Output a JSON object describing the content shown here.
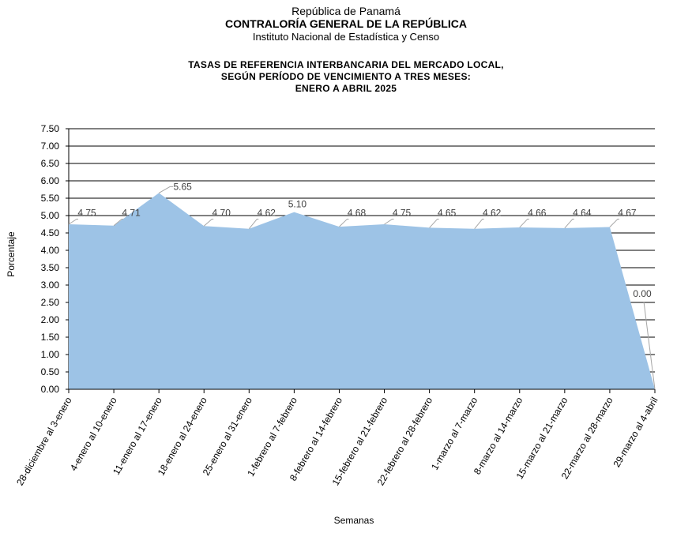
{
  "header": {
    "line1": "República de Panamá",
    "line2": "CONTRALORÍA GENERAL DE LA REPÚBLICA",
    "line3": "Instituto Nacional de Estadística y Censo"
  },
  "chart_data": {
    "type": "area",
    "title_lines": [
      "TASAS DE REFERENCIA INTERBANCARIA DEL MERCADO LOCAL,",
      "SEGÚN PERÍODO DE VENCIMIENTO A TRES MESES:",
      "ENERO A ABRIL 2025"
    ],
    "xlabel": "Semanas",
    "ylabel": "Porcentaje",
    "ylim": [
      0,
      7.5
    ],
    "yticks": [
      "0.00",
      "0.50",
      "1.00",
      "1.50",
      "2.00",
      "2.50",
      "3.00",
      "3.50",
      "4.00",
      "4.50",
      "5.00",
      "5.50",
      "6.00",
      "6.50",
      "7.00",
      "7.50"
    ],
    "categories": [
      "28-diciembre al 3-enero",
      "4-enero al 10-enero",
      "11-enero al 17-enero",
      "18-enero al 24-enero",
      "25-enero al 31-enero",
      "1-febrero al 7-febrero",
      "8-febrero al 14-febrero",
      "15-febrero al 21-febrero",
      "22-febrero al 28-febrero",
      "1-marzo al 7-marzo",
      "8-marzo al 14-marzo",
      "15-marzo al 21-marzo",
      "22-marzo al 28-marzo",
      "29-marzo al 4-abril"
    ],
    "values": [
      4.75,
      4.71,
      5.65,
      4.7,
      4.62,
      5.1,
      4.68,
      4.75,
      4.65,
      4.62,
      4.66,
      4.64,
      4.67,
      0.0
    ],
    "labels": [
      "4.75",
      "4.71",
      "5.65",
      "4.70",
      "4.62",
      "5.10",
      "4.68",
      "4.75",
      "4.65",
      "4.62",
      "4.66",
      "4.64",
      "4.67",
      "0.00"
    ],
    "grid": true,
    "legend": "none",
    "colors": {
      "fill": "#9dc3e6",
      "grid": "#000000",
      "text": "#404040"
    }
  }
}
